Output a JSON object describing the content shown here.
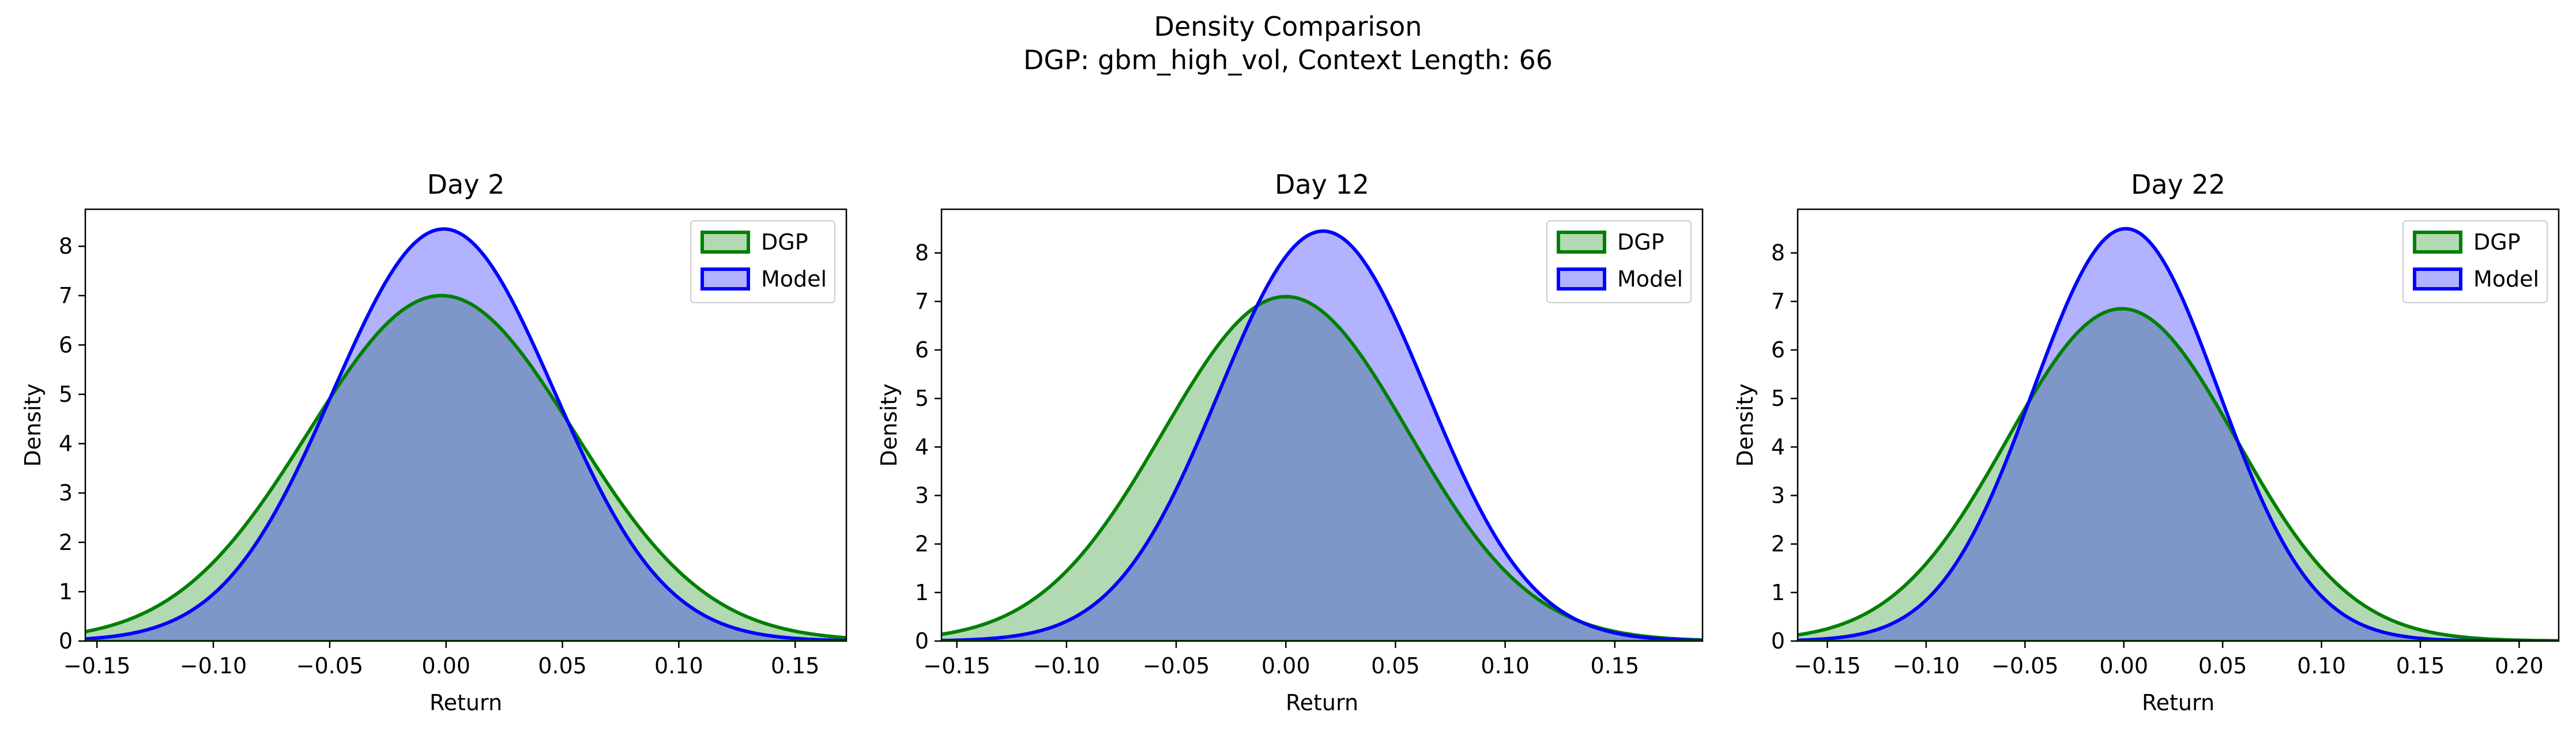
{
  "figure": {
    "title_line1": "Density Comparison",
    "title_line2": "DGP: gbm_high_vol, Context Length: 66"
  },
  "colors": {
    "dgp_line": "#008000",
    "dgp_fill": "#b2d9b2",
    "model_line": "#0000ff",
    "model_fill": "#b2b2ff",
    "overlap_fill": "#7e97c8"
  },
  "chart_data": [
    {
      "type": "area",
      "title": "Day 2",
      "xlabel": "Return",
      "ylabel": "Density",
      "xlim": [
        -0.155,
        0.172
      ],
      "ylim": [
        0,
        8.75
      ],
      "xticks": [
        "-0.15",
        "-0.10",
        "-0.05",
        "0.00",
        "0.05",
        "0.10",
        "0.15"
      ],
      "yticks": [
        "0",
        "1",
        "2",
        "3",
        "4",
        "5",
        "6",
        "7",
        "8"
      ],
      "legend": "top-right",
      "series": [
        {
          "name": "DGP",
          "mean": -0.002,
          "std": 0.057,
          "peak": 7.0
        },
        {
          "name": "Model",
          "mean": -0.001,
          "std": 0.0475,
          "peak": 8.35
        }
      ]
    },
    {
      "type": "area",
      "title": "Day 12",
      "xlabel": "Return",
      "ylabel": "Density",
      "xlim": [
        -0.157,
        0.19
      ],
      "ylim": [
        0,
        8.9
      ],
      "xticks": [
        "-0.15",
        "-0.10",
        "-0.05",
        "0.00",
        "0.05",
        "0.10",
        "0.15"
      ],
      "yticks": [
        "0",
        "1",
        "2",
        "3",
        "4",
        "5",
        "6",
        "7",
        "8"
      ],
      "legend": "top-right",
      "series": [
        {
          "name": "DGP",
          "mean": 0.0,
          "std": 0.056,
          "peak": 7.1
        },
        {
          "name": "Model",
          "mean": 0.017,
          "std": 0.0475,
          "peak": 8.45
        }
      ]
    },
    {
      "type": "area",
      "title": "Day 22",
      "xlabel": "Return",
      "ylabel": "Density",
      "xlim": [
        -0.165,
        0.22
      ],
      "ylim": [
        0,
        8.9
      ],
      "xticks": [
        "-0.15",
        "-0.10",
        "-0.05",
        "0.00",
        "0.05",
        "0.10",
        "0.15",
        "0.20"
      ],
      "yticks": [
        "0",
        "1",
        "2",
        "3",
        "4",
        "5",
        "6",
        "7",
        "8"
      ],
      "legend": "top-right",
      "series": [
        {
          "name": "DGP",
          "mean": -0.001,
          "std": 0.058,
          "peak": 6.85
        },
        {
          "name": "Model",
          "mean": 0.001,
          "std": 0.047,
          "peak": 8.5
        }
      ]
    }
  ]
}
